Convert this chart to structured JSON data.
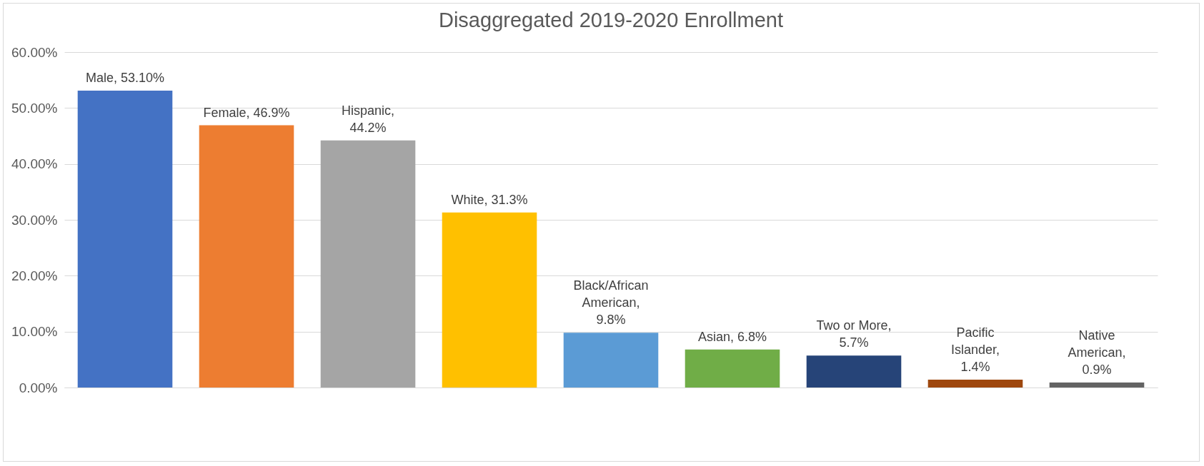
{
  "chart_data": {
    "type": "bar",
    "title": "Disaggregated 2019-2020 Enrollment",
    "categories": [
      null,
      null,
      null,
      null,
      null,
      null,
      null,
      null,
      null
    ],
    "values": [
      53.1,
      46.9,
      44.2,
      31.3,
      9.8,
      6.8,
      5.7,
      1.4,
      0.9
    ],
    "colors": [
      "#4472c4",
      "#ed7d31",
      "#a5a5a5",
      "#ffc000",
      "#5b9bd5",
      "#70ad47",
      "#264478",
      "#9e480e",
      "#636363"
    ],
    "value_labels": [
      "Male, 53.10%",
      "Female, 46.9%",
      "Hispanic, 44.2%",
      "White, 31.3%",
      "Black/African American, 9.8%",
      "Asian, 6.8%",
      "Two or More, 5.7%",
      "Pacific Islander, 1.4%",
      "Native American, 0.9%"
    ],
    "ylim": [
      0,
      60
    ],
    "yticks": [
      {
        "value": 0,
        "label": "0.00%"
      },
      {
        "value": 10,
        "label": "10.00%"
      },
      {
        "value": 20,
        "label": "20.00%"
      },
      {
        "value": 30,
        "label": "30.00%"
      },
      {
        "value": 40,
        "label": "40.00%"
      },
      {
        "value": 50,
        "label": "50.00%"
      },
      {
        "value": 60,
        "label": "60.00%"
      }
    ],
    "grid": "y",
    "tick_labels": "y"
  }
}
